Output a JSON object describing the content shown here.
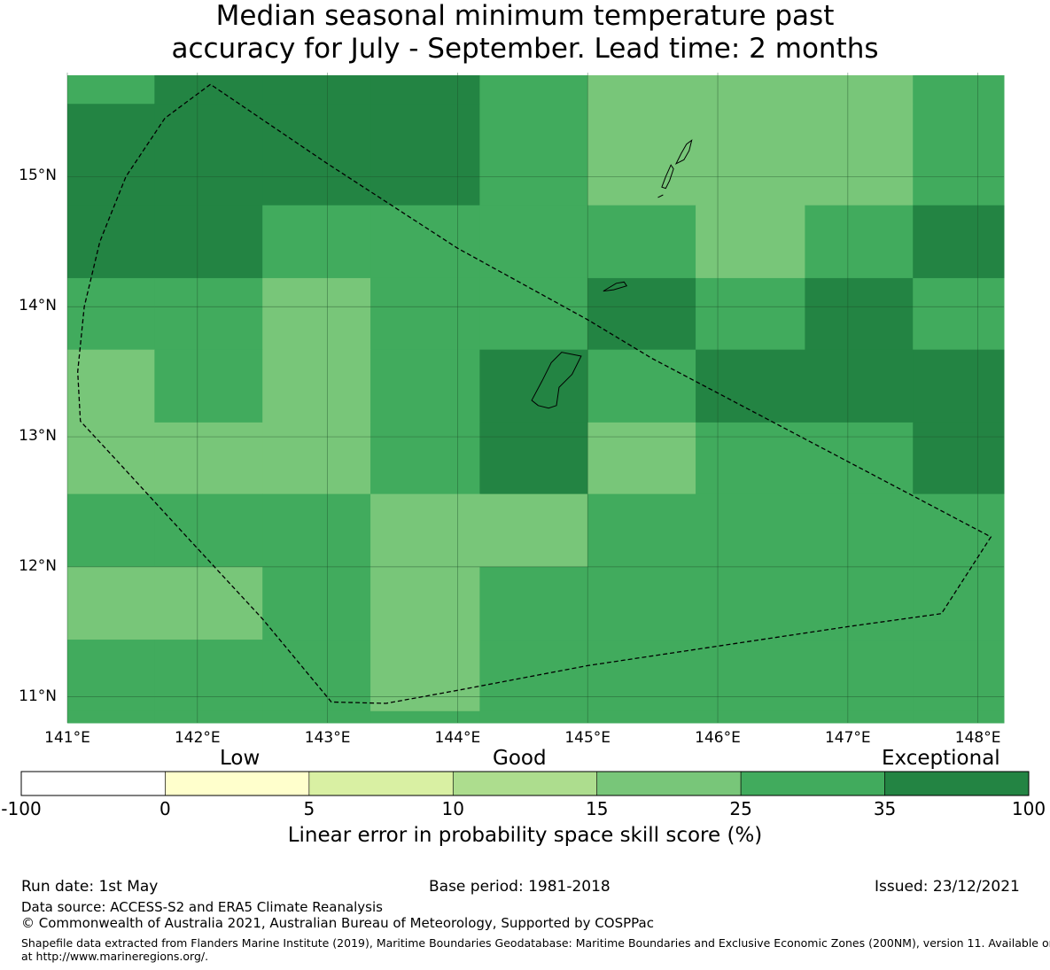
{
  "title": {
    "line1": "Median seasonal minimum temperature past",
    "line2": "accuracy for July - September. Lead time: 2 months"
  },
  "chart_data": {
    "type": "heatmap",
    "grid_cells": {
      "lon_edges": [
        141.0,
        141.67,
        142.5,
        143.33,
        144.17,
        145.0,
        145.83,
        146.67,
        147.5,
        148.33
      ],
      "lat_edges": [
        15.78,
        15.56,
        14.78,
        14.22,
        13.67,
        13.11,
        12.56,
        12.0,
        11.44,
        10.89,
        10.78
      ],
      "rows_top_to_bottom_skill_class": [
        [
          "25-35",
          "35-100",
          "35-100",
          "35-100",
          "25-35",
          "15-25",
          "15-25",
          "15-25",
          "25-35"
        ],
        [
          "35-100",
          "35-100",
          "35-100",
          "35-100",
          "25-35",
          "15-25",
          "15-25",
          "15-25",
          "25-35"
        ],
        [
          "35-100",
          "35-100",
          "25-35",
          "25-35",
          "25-35",
          "25-35",
          "15-25",
          "25-35",
          "35-100"
        ],
        [
          "25-35",
          "25-35",
          "15-25",
          "25-35",
          "25-35",
          "35-100",
          "25-35",
          "35-100",
          "25-35"
        ],
        [
          "15-25",
          "25-35",
          "15-25",
          "25-35",
          "35-100",
          "25-35",
          "35-100",
          "35-100",
          "35-100"
        ],
        [
          "15-25",
          "15-25",
          "15-25",
          "25-35",
          "35-100",
          "15-25",
          "25-35",
          "25-35",
          "35-100"
        ],
        [
          "25-35",
          "25-35",
          "25-35",
          "15-25",
          "15-25",
          "25-35",
          "25-35",
          "25-35",
          "25-35"
        ],
        [
          "15-25",
          "15-25",
          "25-35",
          "15-25",
          "25-35",
          "25-35",
          "25-35",
          "25-35",
          "25-35"
        ],
        [
          "25-35",
          "25-35",
          "25-35",
          "15-25",
          "25-35",
          "25-35",
          "25-35",
          "25-35",
          "25-35"
        ],
        [
          "25-35",
          "25-35",
          "25-35",
          "25-35",
          "25-35",
          "25-35",
          "25-35",
          "25-35",
          "25-35"
        ]
      ]
    },
    "x_ticks": [
      "141°E",
      "142°E",
      "143°E",
      "144°E",
      "145°E",
      "146°E",
      "147°E",
      "148°E"
    ],
    "x_tick_values": [
      141,
      142,
      143,
      144,
      145,
      146,
      147,
      148
    ],
    "y_ticks": [
      "15°N",
      "14°N",
      "13°N",
      "12°N",
      "11°N"
    ],
    "y_tick_values": [
      15,
      14,
      13,
      12,
      11
    ],
    "xlim": [
      141.0,
      148.2
    ],
    "ylim": [
      10.8,
      15.8
    ],
    "eez_boundary": [
      [
        142.1,
        15.71
      ],
      [
        141.75,
        15.45
      ],
      [
        141.45,
        15.0
      ],
      [
        141.25,
        14.5
      ],
      [
        141.13,
        14.0
      ],
      [
        141.08,
        13.5
      ],
      [
        141.1,
        13.12
      ],
      [
        141.35,
        12.85
      ],
      [
        141.9,
        12.25
      ],
      [
        142.5,
        11.6
      ],
      [
        143.03,
        10.96
      ],
      [
        143.45,
        10.95
      ],
      [
        144.0,
        11.05
      ],
      [
        145.0,
        11.24
      ],
      [
        146.0,
        11.39
      ],
      [
        147.0,
        11.54
      ],
      [
        147.72,
        11.64
      ],
      [
        148.1,
        12.23
      ],
      [
        145.5,
        13.6
      ],
      [
        145.0,
        13.9
      ],
      [
        144.0,
        14.45
      ],
      [
        143.0,
        15.1
      ]
    ],
    "islands": {
      "guam": [
        [
          144.62,
          13.24
        ],
        [
          144.57,
          13.28
        ],
        [
          144.65,
          13.43
        ],
        [
          144.72,
          13.57
        ],
        [
          144.8,
          13.65
        ],
        [
          144.95,
          13.62
        ],
        [
          144.88,
          13.48
        ],
        [
          144.78,
          13.38
        ],
        [
          144.76,
          13.24
        ],
        [
          144.7,
          13.22
        ]
      ],
      "rota": [
        [
          145.12,
          14.12
        ],
        [
          145.22,
          14.18
        ],
        [
          145.28,
          14.19
        ],
        [
          145.3,
          14.16
        ],
        [
          145.2,
          14.13
        ]
      ],
      "tinian": [
        [
          145.57,
          14.92
        ],
        [
          145.6,
          15.0
        ],
        [
          145.64,
          15.09
        ],
        [
          145.66,
          15.06
        ],
        [
          145.63,
          14.97
        ],
        [
          145.6,
          14.91
        ]
      ],
      "saipan": [
        [
          145.68,
          15.1
        ],
        [
          145.72,
          15.18
        ],
        [
          145.76,
          15.25
        ],
        [
          145.8,
          15.28
        ],
        [
          145.78,
          15.2
        ],
        [
          145.74,
          15.13
        ]
      ],
      "aguijan": [
        [
          145.54,
          14.84
        ],
        [
          145.58,
          14.86
        ],
        [
          145.56,
          14.85
        ]
      ]
    }
  },
  "colorbar": {
    "categories": [
      "Low",
      "Good",
      "Exceptional"
    ],
    "tick_labels": [
      "-100",
      "0",
      "5",
      "10",
      "15",
      "25",
      "35",
      "100"
    ],
    "colors": [
      "#ffffff",
      "#ffffcc",
      "#d9f0a3",
      "#addd8e",
      "#78c679",
      "#41ab5d",
      "#238443"
    ],
    "title": "Linear error in probability space skill score (%)"
  },
  "footer": {
    "run_date": "Run date: 1st May",
    "base_period": "Base period: 1981-2018",
    "issued": "Issued: 23/12/2021",
    "data_source": "Data source: ACCESS-S2 and ERA5 Climate Reanalysis",
    "copyright": "© Commonwealth of Australia 2021, Australian Bureau of Meteorology, Supported by COSPPac",
    "shapefile_line1": "Shapefile data extracted from Flanders Marine Institute (2019), Maritime Boundaries Geodatabase: Maritime Boundaries and Exclusive Economic Zones (200NM), version 11. Available online",
    "shapefile_line2": "at http://www.marineregions.org/."
  }
}
